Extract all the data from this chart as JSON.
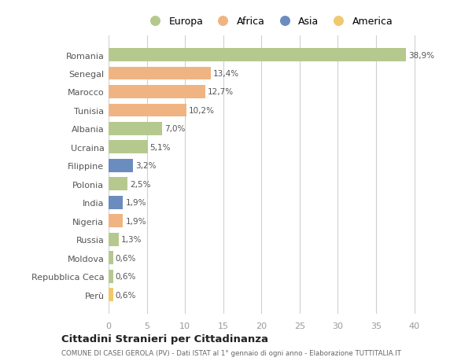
{
  "countries": [
    "Romania",
    "Senegal",
    "Marocco",
    "Tunisia",
    "Albania",
    "Ucraina",
    "Filippine",
    "Polonia",
    "India",
    "Nigeria",
    "Russia",
    "Moldova",
    "Repubblica Ceca",
    "Perù"
  ],
  "values": [
    38.9,
    13.4,
    12.7,
    10.2,
    7.0,
    5.1,
    3.2,
    2.5,
    1.9,
    1.9,
    1.3,
    0.6,
    0.6,
    0.6
  ],
  "labels": [
    "38,9%",
    "13,4%",
    "12,7%",
    "10,2%",
    "7,0%",
    "5,1%",
    "3,2%",
    "2,5%",
    "1,9%",
    "1,9%",
    "1,3%",
    "0,6%",
    "0,6%",
    "0,6%"
  ],
  "continents": [
    "Europa",
    "Africa",
    "Africa",
    "Africa",
    "Europa",
    "Europa",
    "Asia",
    "Europa",
    "Asia",
    "Africa",
    "Europa",
    "Europa",
    "Europa",
    "America"
  ],
  "colors": {
    "Europa": "#b5c98e",
    "Africa": "#f0b482",
    "Asia": "#6b8cbf",
    "America": "#f0c96e"
  },
  "legend_order": [
    "Europa",
    "Africa",
    "Asia",
    "America"
  ],
  "title": "Cittadini Stranieri per Cittadinanza",
  "subtitle": "COMUNE DI CASEI GEROLA (PV) - Dati ISTAT al 1° gennaio di ogni anno - Elaborazione TUTTITALIA.IT",
  "xlim": [
    0,
    42
  ],
  "xticks": [
    0,
    5,
    10,
    15,
    20,
    25,
    30,
    35,
    40
  ],
  "background_color": "#ffffff",
  "grid_color": "#d0d0d0",
  "bar_height": 0.72
}
